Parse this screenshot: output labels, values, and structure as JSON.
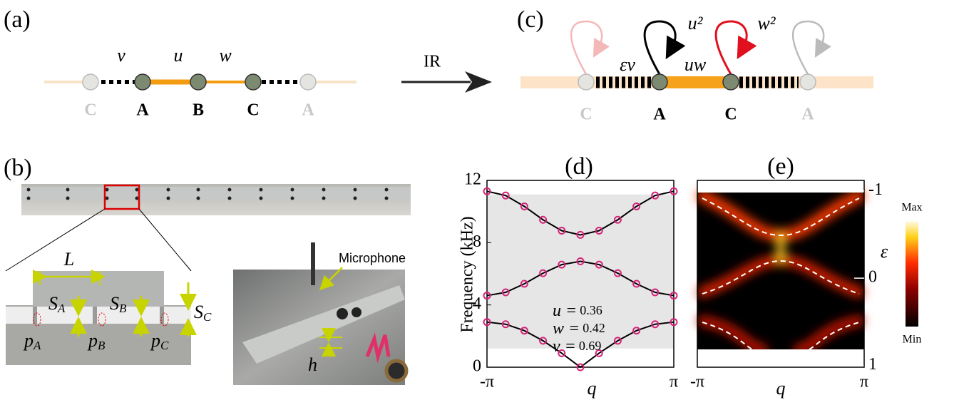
{
  "panel_labels": [
    "(a)",
    "(b)",
    "(c)",
    "(d)",
    "(e)"
  ],
  "panel_a": {
    "bonds": [
      "v",
      "u",
      "w"
    ],
    "nodes": [
      "C",
      "A",
      "B",
      "C",
      "A"
    ]
  },
  "arrow_label": "IR",
  "panel_c": {
    "bonds": [
      "εv",
      "uw"
    ],
    "loops": [
      "u²",
      "w²"
    ],
    "nodes": [
      "C",
      "A",
      "C",
      "A"
    ]
  },
  "panel_b": {
    "length": "L",
    "gaps": [
      {
        "main": "S",
        "sub": "A"
      },
      {
        "main": "S",
        "sub": "B"
      },
      {
        "main": "S",
        "sub": "C"
      }
    ],
    "pores": [
      {
        "main": "p",
        "sub": "A"
      },
      {
        "main": "p",
        "sub": "B"
      },
      {
        "main": "p",
        "sub": "C"
      }
    ],
    "height": "h",
    "microphone": "Microphone"
  },
  "chart_data": {
    "type": "line",
    "x": [
      -1,
      -0.8,
      -0.6,
      -0.4,
      -0.2,
      0,
      0.2,
      0.4,
      0.6,
      0.8,
      1
    ],
    "xlim": [
      -1,
      1
    ],
    "xticks": [
      {
        "value": -1,
        "label": "-π"
      },
      {
        "value": 1,
        "label": "π"
      }
    ],
    "xlabel": "q",
    "ylabel": "Frequency (kHz)",
    "ylim": [
      0,
      12
    ],
    "yticks": [
      0,
      4,
      8,
      12
    ],
    "shaded_range": [
      1.2,
      11.1
    ],
    "series": [
      {
        "color": "#000000",
        "marker_color": "#d6247a",
        "values": [
          2.9,
          2.76,
          2.35,
          1.7,
          0.9,
          0,
          0.9,
          1.7,
          2.35,
          2.76,
          2.9
        ]
      },
      {
        "color": "#000000",
        "marker_color": "#d6247a",
        "values": [
          4.6,
          4.81,
          5.36,
          6.04,
          6.59,
          6.8,
          6.59,
          6.04,
          5.36,
          4.81,
          4.6
        ]
      },
      {
        "color": "#000000",
        "marker_color": "#d6247a",
        "values": [
          11.3,
          11.03,
          10.33,
          9.47,
          8.77,
          8.5,
          8.77,
          9.47,
          10.33,
          11.03,
          11.3
        ]
      }
    ],
    "parameters": [
      {
        "label": "u =",
        "value": 0.36
      },
      {
        "label": "w =",
        "value": 0.42
      },
      {
        "label": "v =",
        "value": 0.69
      }
    ]
  },
  "panel_e": {
    "xticks": [
      {
        "value": -1,
        "label": "-π"
      },
      {
        "value": 1,
        "label": "π"
      }
    ],
    "xlim": [
      -1,
      1
    ],
    "xlabel": "q",
    "ylabel": "ε",
    "ylim": [
      -1.12,
      1.02
    ],
    "yticks": [
      -1,
      0,
      1
    ],
    "colorbar": {
      "max": "Max",
      "min": "Min"
    }
  }
}
